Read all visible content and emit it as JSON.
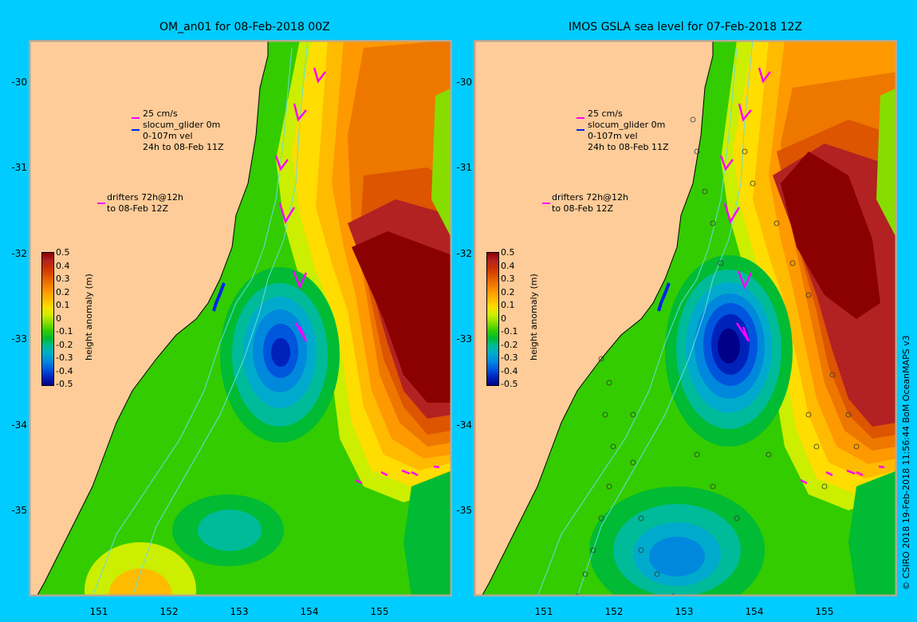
{
  "left_panel": {
    "title": "OM_an01 for 08-Feb-2018 00Z",
    "legend": {
      "arrow_scale": "25 cm/s",
      "glider": "slocum_glider 0m",
      "vel": "0-107m vel",
      "window": "24h to 08-Feb 11Z",
      "drifters_1": "drifters 72h@12h",
      "drifters_2": "to 08-Feb 12Z"
    }
  },
  "right_panel": {
    "title": "IMOS GSLA sea level  for 07-Feb-2018 12Z",
    "legend": {
      "arrow_scale": "25 cm/s",
      "glider": "slocum_glider 0m",
      "vel": "0-107m vel",
      "window": "24h to 08-Feb 11Z",
      "drifters_1": "drifters 72h@12h",
      "drifters_2": "to 08-Feb 12Z"
    }
  },
  "colorbar": {
    "title": "height anomaly (m)",
    "ticks": [
      "0.5",
      "0.4",
      "0.3",
      "0.2",
      "0.1",
      "0",
      "-0.1",
      "-0.2",
      "-0.3",
      "-0.4",
      "-0.5"
    ],
    "colors": [
      "#8b0000",
      "#b22222",
      "#cc3300",
      "#dd5500",
      "#ee7700",
      "#ff9900",
      "#ffbb00",
      "#ffdd00",
      "#ccee00",
      "#88dd00",
      "#33cc00",
      "#00bb33",
      "#00bb99",
      "#00aacc",
      "#0088dd",
      "#0055dd",
      "#0022bb",
      "#000088"
    ]
  },
  "axes": {
    "lat_ticks": [
      "-30",
      "-31",
      "-32",
      "-33",
      "-34",
      "-35"
    ],
    "lon_ticks": [
      "151",
      "152",
      "153",
      "154",
      "155"
    ]
  },
  "credit": "© CSIRO 2018  19-Feb-2018 11:56:44 BoM OceanMAPS v3",
  "colors": {
    "background": "#00ccff",
    "land": "#fdcc99",
    "coast_line": "#000000"
  }
}
